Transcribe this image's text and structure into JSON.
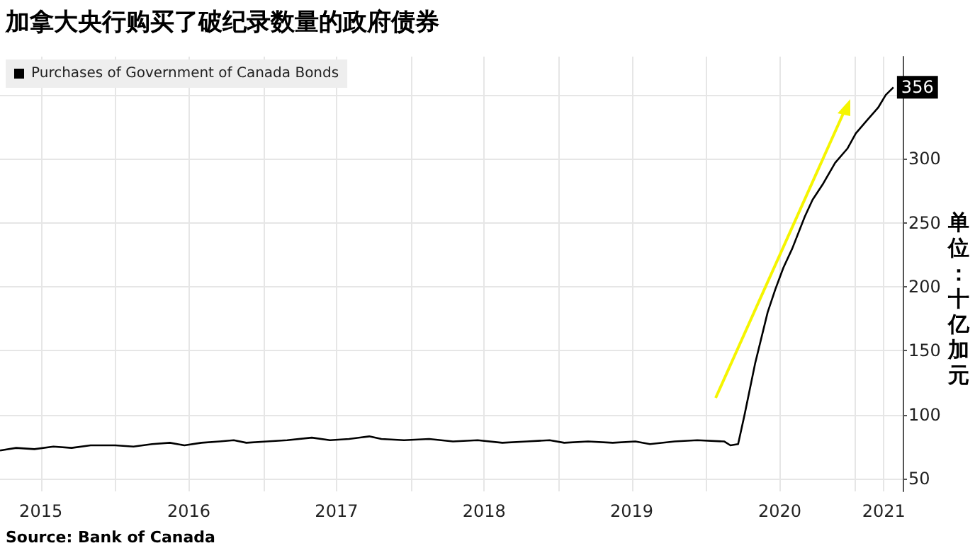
{
  "chart_data": {
    "type": "line",
    "title": "加拿大央行购买了破纪录数量的政府债券",
    "ylabel": "单位：十亿加元",
    "annotations": [
      {
        "text": "356",
        "x": "2021-04-08",
        "y": 356
      },
      "Source:  Bank of Canada"
    ],
    "x": [
      "2015-03-22",
      "2015-05-01",
      "2015-06-15",
      "2015-08-01",
      "2015-09-15",
      "2015-11-01",
      "2016-01-01",
      "2016-02-15",
      "2016-04-01",
      "2016-05-15",
      "2016-06-20",
      "2016-08-01",
      "2016-09-15",
      "2016-10-20",
      "2016-11-20",
      "2017-01-10",
      "2017-03-01",
      "2017-05-01",
      "2017-06-15",
      "2017-08-01",
      "2017-09-20",
      "2017-10-20",
      "2017-12-15",
      "2018-02-15",
      "2018-04-15",
      "2018-06-15",
      "2018-08-15",
      "2018-10-15",
      "2018-12-10",
      "2019-01-15",
      "2019-03-15",
      "2019-05-15",
      "2019-07-10",
      "2019-08-15",
      "2019-10-15",
      "2019-12-10",
      "2020-02-15",
      "2020-03-01",
      "2020-03-20",
      "2020-04-05",
      "2020-05-01",
      "2020-06-01",
      "2020-06-20",
      "2020-07-10",
      "2020-08-01",
      "2020-09-01",
      "2020-09-20",
      "2020-10-15",
      "2020-11-15",
      "2020-12-15",
      "2021-01-05",
      "2021-02-01",
      "2021-03-01",
      "2021-03-20",
      "2021-04-08"
    ],
    "series": [
      {
        "name": "Purchases of Government of Canada Bonds",
        "color": "#000000",
        "values": [
          72,
          74,
          73,
          75,
          74,
          76,
          76,
          75,
          77,
          78,
          76,
          78,
          79,
          80,
          78,
          79,
          80,
          82,
          80,
          81,
          83,
          81,
          80,
          81,
          79,
          80,
          78,
          79,
          80,
          78,
          79,
          78,
          79,
          77,
          79,
          80,
          79,
          76,
          77,
          100,
          140,
          180,
          198,
          215,
          230,
          255,
          268,
          280,
          297,
          308,
          320,
          330,
          340,
          350,
          356
        ]
      }
    ],
    "xlim": [
      "2015-03-22",
      "2021-05-01"
    ],
    "xticks": [
      {
        "value": "2015-07-01",
        "label": "2015"
      },
      {
        "value": "2016-01-01",
        "label": null
      },
      {
        "value": "2016-07-01",
        "label": "2016"
      },
      {
        "value": "2017-01-01",
        "label": null
      },
      {
        "value": "2017-07-01",
        "label": "2017"
      },
      {
        "value": "2018-01-01",
        "label": null
      },
      {
        "value": "2018-07-01",
        "label": "2018"
      },
      {
        "value": "2019-01-01",
        "label": null
      },
      {
        "value": "2019-07-01",
        "label": "2019"
      },
      {
        "value": "2020-01-01",
        "label": null
      },
      {
        "value": "2020-07-01",
        "label": "2020"
      },
      {
        "value": "2021-01-01",
        "label": null
      },
      {
        "value": "2021-03-15",
        "label": "2021"
      }
    ],
    "ylim": [
      40,
      380
    ],
    "yticks": [
      50,
      100,
      150,
      200,
      250,
      300,
      {
        "value": 350,
        "label": null
      }
    ],
    "grid": true,
    "legend": "top left",
    "marker": "none",
    "line_style": "solid"
  }
}
